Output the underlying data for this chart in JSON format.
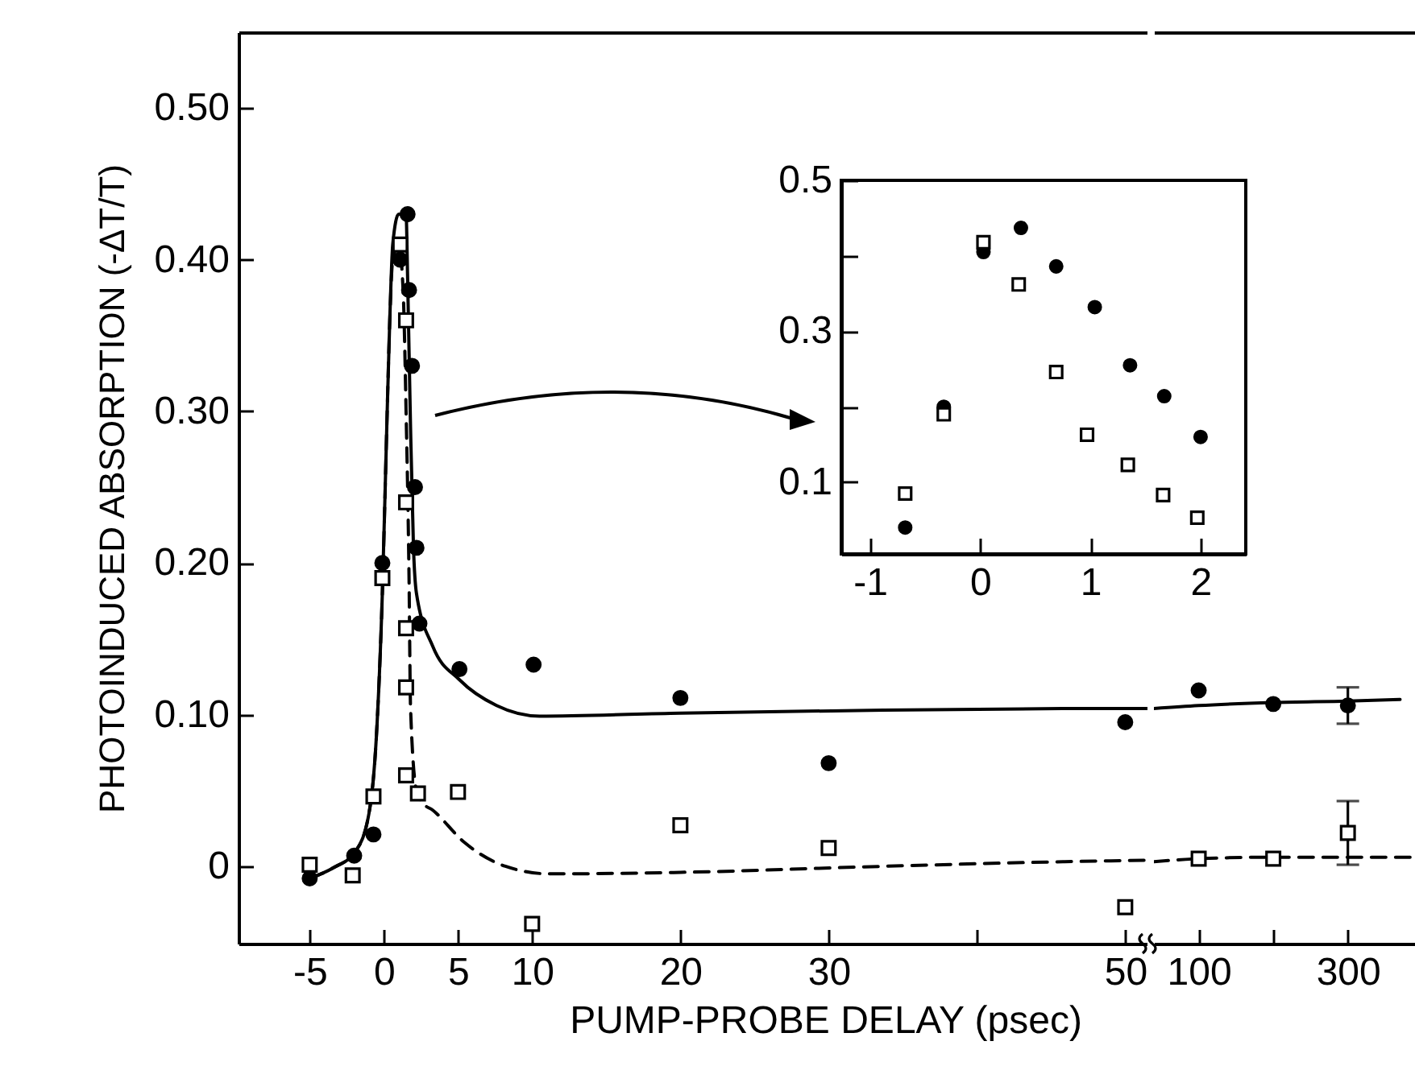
{
  "chart_data": [
    {
      "type": "scatter",
      "xlabel": "PUMP-PROBE DELAY (psec)",
      "ylabel": "PHOTOINDUCED ABSORPTION (-ΔT/T)",
      "xlim": [
        -9.8,
        51.5
      ],
      "xticks": [
        -5,
        0,
        5,
        10,
        20,
        30,
        {
          "value": 40,
          "label": null
        },
        50
      ],
      "ylim": [
        -0.051,
        0.55
      ],
      "yticks": [
        {
          "value": 0,
          "label": "0"
        },
        {
          "value": 0.1,
          "label": "0.10"
        },
        {
          "value": 0.2,
          "label": "0.20"
        },
        {
          "value": 0.3,
          "label": "0.30"
        },
        {
          "value": 0.4,
          "label": "0.40"
        },
        {
          "value": 0.5,
          "label": "0.50"
        }
      ],
      "series": [
        {
          "type": "line",
          "line_style": "dashed",
          "color": "#000000",
          "x": [
            -5,
            -3.4,
            -1.9,
            -1.0,
            -0.5,
            -0.1,
            0.2,
            0.4,
            0.6,
            1.0,
            1.3,
            1.5,
            1.7,
            1.8,
            2.2,
            2.6,
            3.3,
            5.4,
            8.2,
            11.2,
            20,
            33.7,
            45.8,
            51.5
          ],
          "values": [
            -0.008,
            -0.001,
            0.01,
            0.035,
            0.086,
            0.18,
            0.29,
            0.36,
            0.4,
            0.41,
            0.38,
            0.3,
            0.19,
            0.105,
            0.05,
            0.042,
            0.037,
            0.016,
            0.0,
            -0.005,
            -0.004,
            0.0,
            0.003,
            0.004
          ]
        },
        {
          "type": "line",
          "line_style": "solid",
          "color": "#000000",
          "x": [
            -5,
            -3.4,
            -1.9,
            -1.0,
            -0.5,
            -0.1,
            0.2,
            0.4,
            0.6,
            1.0,
            1.5,
            1.6,
            1.8,
            2.0,
            2.2,
            3.3,
            5.1,
            7.6,
            10.5,
            20,
            33.7,
            45.8,
            51.5
          ],
          "values": [
            -0.008,
            -0.001,
            0.01,
            0.035,
            0.086,
            0.18,
            0.29,
            0.36,
            0.41,
            0.43,
            0.43,
            0.39,
            0.29,
            0.21,
            0.18,
            0.145,
            0.123,
            0.106,
            0.099,
            0.101,
            0.103,
            0.104,
            0.104
          ]
        },
        {
          "marker": "circle",
          "color": "#000000",
          "x": [
            -5,
            -2,
            -0.7,
            -0.1,
            1.1,
            1.6,
            1.7,
            1.9,
            2.1,
            2.2,
            2.4,
            5.1,
            10.1,
            20,
            30,
            50
          ],
          "values": [
            -0.008,
            0.007,
            0.021,
            0.2,
            0.4,
            0.43,
            0.38,
            0.33,
            0.25,
            0.21,
            0.16,
            0.13,
            0.133,
            0.111,
            0.068,
            0.095
          ]
        },
        {
          "marker": "square",
          "color": "#000000",
          "x": [
            -5,
            -2.1,
            -0.7,
            -0.1,
            1.1,
            1.5,
            1.5,
            1.5,
            1.5,
            1.5,
            2.3,
            5,
            10,
            20,
            30,
            50
          ],
          "values": [
            0.001,
            -0.006,
            0.046,
            0.19,
            0.41,
            0.36,
            0.24,
            0.157,
            0.118,
            0.06,
            0.048,
            0.049,
            -0.038,
            0.027,
            0.012,
            -0.027
          ]
        }
      ]
    },
    {
      "type": "scatter",
      "tick_labels": "x",
      "xlim": [
        40,
        390
      ],
      "xticks": [
        100,
        {
          "value": 200,
          "label": null
        },
        300
      ],
      "ylim": [
        -0.051,
        0.55
      ],
      "series": [
        {
          "type": "line",
          "line_style": "dashed",
          "color": "#000000",
          "x": [
            40,
            100,
            200,
            300,
            390
          ],
          "values": [
            0.003,
            0.005,
            0.006,
            0.006,
            0.006
          ]
        },
        {
          "type": "line",
          "line_style": "solid",
          "color": "#000000",
          "x": [
            40,
            100,
            200,
            300,
            370
          ],
          "values": [
            0.104,
            0.106,
            0.108,
            0.109,
            0.11
          ]
        },
        {
          "marker": "circle",
          "color": "#000000",
          "x": [
            100,
            200,
            300
          ],
          "values": [
            0.116,
            0.107,
            0.106
          ],
          "errors": [
            null,
            null,
            0.012
          ]
        },
        {
          "marker": "square",
          "color": "#000000",
          "x": [
            100,
            200,
            300
          ],
          "values": [
            0.005,
            0.005,
            0.022
          ],
          "errors": [
            null,
            null,
            0.021
          ]
        }
      ]
    },
    {
      "type": "scatter",
      "xlim": [
        -1.26,
        2.41
      ],
      "xticks": [
        -1,
        0,
        1,
        2
      ],
      "ylim": [
        0.005,
        0.5
      ],
      "yticks": [
        0.1,
        {
          "value": 0.2,
          "label": null
        },
        0.3,
        {
          "value": 0.4,
          "label": null
        },
        0.5
      ],
      "series": [
        {
          "marker": "circle",
          "color": "#000000",
          "x": [
            -0.68,
            -0.33,
            0.03,
            0.37,
            0.69,
            1.04,
            1.36,
            1.67,
            2.0
          ],
          "values": [
            0.04,
            0.2,
            0.405,
            0.437,
            0.386,
            0.332,
            0.255,
            0.214,
            0.16
          ]
        },
        {
          "marker": "square",
          "color": "#000000",
          "x": [
            -0.68,
            -0.33,
            0.03,
            0.35,
            0.69,
            0.97,
            1.34,
            1.66,
            1.97
          ],
          "values": [
            0.085,
            0.19,
            0.418,
            0.362,
            0.246,
            0.163,
            0.123,
            0.083,
            0.053
          ]
        }
      ]
    }
  ]
}
